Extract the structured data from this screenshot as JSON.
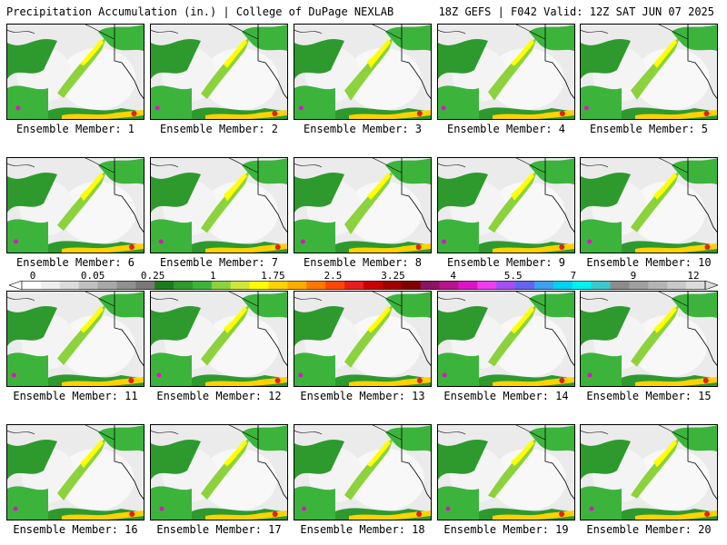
{
  "header": {
    "title_left": "Precipitation Accumulation (in.) | College of DuPage NEXLAB",
    "title_right": "18Z GEFS | F042 Valid: 12Z SAT JUN 07 2025"
  },
  "member_label_prefix": "Ensemble Member: ",
  "members": [
    1,
    2,
    3,
    4,
    5,
    6,
    7,
    8,
    9,
    10,
    11,
    12,
    13,
    14,
    15,
    16,
    17,
    18,
    19,
    20
  ],
  "colorbar": {
    "tick_labels": [
      "0",
      "0.05",
      "0.25",
      "1",
      "1.75",
      "2.5",
      "3.25",
      "4",
      "5.5",
      "7",
      "9",
      "12"
    ],
    "colors": [
      "#ffffff",
      "#eeeeee",
      "#dcdcdc",
      "#c0c0c0",
      "#a8a8a8",
      "#909090",
      "#787878",
      "#1e7a1e",
      "#2e9a2e",
      "#3cb43c",
      "#8cd23c",
      "#d2e63c",
      "#ffff00",
      "#ffd200",
      "#ffaa00",
      "#ff7800",
      "#ff4600",
      "#e61e1e",
      "#c80000",
      "#a00000",
      "#800000",
      "#8c1464",
      "#b4148c",
      "#dc14c8",
      "#f03cf0",
      "#a050f0",
      "#6464f0",
      "#3ca0f0",
      "#00d2f0",
      "#00f0f0",
      "#3cc8c8",
      "#8c8c8c",
      "#a0a0a0",
      "#b4b4b4",
      "#c8c8c8",
      "#dcdcdc"
    ]
  }
}
